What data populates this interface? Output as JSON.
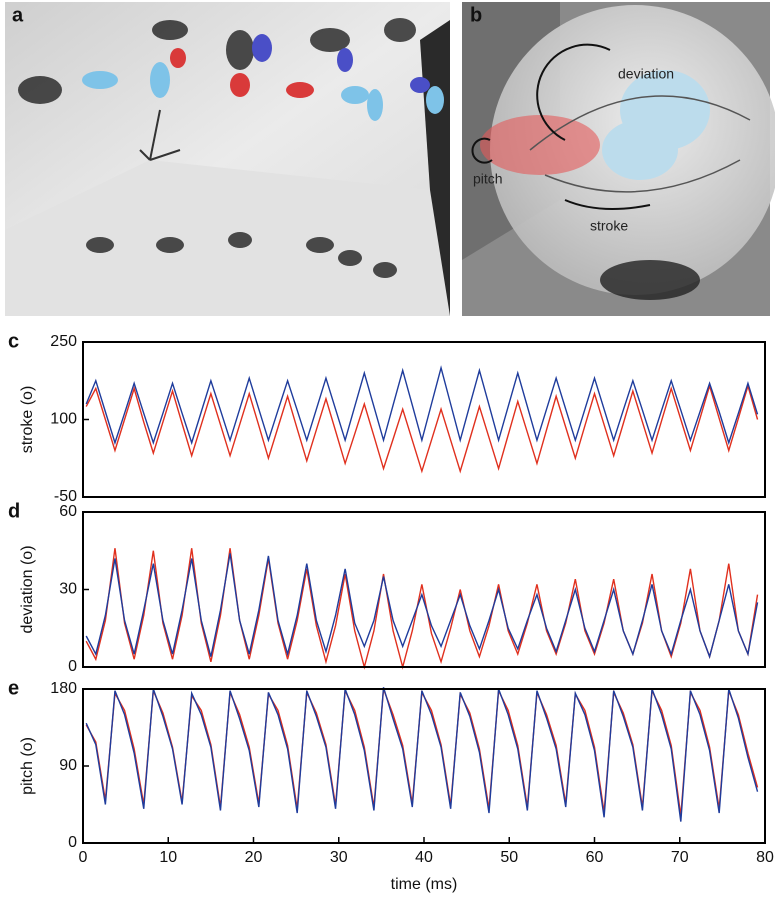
{
  "panels": {
    "a": {
      "label": "a"
    },
    "b": {
      "label": "b",
      "annotations": [
        "deviation",
        "pitch",
        "stroke"
      ]
    }
  },
  "chart_data": [
    {
      "type": "line",
      "panel_label": "c",
      "ylabel": "stroke (o)",
      "x": [
        0.375,
        1.5,
        2.625,
        3.75,
        4.875,
        6,
        7.125,
        8.25,
        9.375,
        10.5,
        11.625,
        12.75,
        13.875,
        15,
        16.125,
        17.25,
        18.375,
        19.5,
        20.625,
        21.75,
        22.875,
        24,
        25.125,
        26.25,
        27.375,
        28.5,
        29.625,
        30.75,
        31.875,
        33,
        34.125,
        35.25,
        36.375,
        37.5,
        38.625,
        39.75,
        40.875,
        42,
        43.125,
        44.25,
        45.375,
        46.5,
        47.625,
        48.75,
        49.875,
        51,
        52.125,
        53.25,
        54.375,
        55.5,
        56.625,
        57.75,
        58.875,
        60,
        61.125,
        62.25,
        63.375,
        64.5,
        65.625,
        66.75,
        67.875,
        69,
        70.125,
        71.25,
        72.375,
        73.5,
        74.625,
        75.75,
        76.875,
        78,
        79.125
      ],
      "xlim": [
        0,
        80
      ],
      "ylim": [
        -50,
        250
      ],
      "yticks": [
        -50,
        100,
        250
      ],
      "series": [
        {
          "color": "#e0301e",
          "values": [
            125,
            160,
            100,
            40,
            100,
            160,
            95,
            35,
            95,
            155,
            92,
            30,
            90,
            150,
            90,
            30,
            90,
            150,
            88,
            25,
            85,
            145,
            82,
            20,
            80,
            140,
            78,
            15,
            72,
            130,
            68,
            5,
            62,
            120,
            60,
            0,
            60,
            120,
            60,
            0,
            62,
            125,
            65,
            5,
            70,
            135,
            75,
            15,
            80,
            145,
            85,
            25,
            88,
            150,
            90,
            30,
            92,
            155,
            95,
            35,
            98,
            160,
            100,
            40,
            102,
            165,
            102,
            40,
            102,
            165,
            100
          ]
        },
        {
          "color": "#1f3c9c",
          "values": [
            130,
            175,
            115,
            55,
            112,
            170,
            112,
            55,
            112,
            170,
            112,
            55,
            115,
            175,
            118,
            60,
            120,
            180,
            120,
            60,
            118,
            175,
            118,
            60,
            120,
            180,
            120,
            60,
            125,
            190,
            125,
            60,
            128,
            195,
            128,
            60,
            130,
            200,
            130,
            60,
            128,
            195,
            128,
            60,
            125,
            190,
            125,
            60,
            120,
            180,
            120,
            60,
            120,
            180,
            120,
            60,
            118,
            175,
            118,
            60,
            118,
            175,
            118,
            60,
            115,
            170,
            115,
            55,
            112,
            170,
            110
          ]
        }
      ]
    },
    {
      "type": "line",
      "panel_label": "d",
      "ylabel": "deviation (o)",
      "x": [
        0.375,
        1.5,
        2.625,
        3.75,
        4.875,
        6,
        7.125,
        8.25,
        9.375,
        10.5,
        11.625,
        12.75,
        13.875,
        15,
        16.125,
        17.25,
        18.375,
        19.5,
        20.625,
        21.75,
        22.875,
        24,
        25.125,
        26.25,
        27.375,
        28.5,
        29.625,
        30.75,
        31.875,
        33,
        34.125,
        35.25,
        36.375,
        37.5,
        38.625,
        39.75,
        40.875,
        42,
        43.125,
        44.25,
        45.375,
        46.5,
        47.625,
        48.75,
        49.875,
        51,
        52.125,
        53.25,
        54.375,
        55.5,
        56.625,
        57.75,
        58.875,
        60,
        61.125,
        62.25,
        63.375,
        64.5,
        65.625,
        66.75,
        67.875,
        69,
        70.125,
        71.25,
        72.375,
        73.5,
        74.625,
        75.75,
        76.875,
        78,
        79.125
      ],
      "xlim": [
        0,
        80
      ],
      "ylim": [
        0,
        60
      ],
      "yticks": [
        0,
        30,
        60
      ],
      "series": [
        {
          "color": "#e0301e",
          "values": [
            10,
            3,
            18,
            46,
            17,
            3,
            20,
            45,
            17,
            3,
            20,
            46,
            17,
            2,
            20,
            46,
            18,
            3,
            20,
            42,
            17,
            3,
            18,
            38,
            16,
            2,
            16,
            36,
            14,
            0,
            14,
            36,
            14,
            0,
            14,
            32,
            13,
            2,
            15,
            30,
            14,
            4,
            16,
            32,
            14,
            5,
            17,
            32,
            14,
            5,
            17,
            34,
            14,
            5,
            17,
            34,
            14,
            5,
            17,
            36,
            14,
            4,
            17,
            38,
            14,
            4,
            18,
            40,
            14,
            5,
            28
          ]
        },
        {
          "color": "#1f3c9c",
          "values": [
            12,
            5,
            20,
            42,
            18,
            5,
            22,
            40,
            18,
            5,
            22,
            42,
            18,
            4,
            22,
            44,
            18,
            5,
            22,
            43,
            18,
            5,
            20,
            40,
            18,
            6,
            20,
            38,
            17,
            8,
            18,
            35,
            18,
            8,
            18,
            28,
            16,
            8,
            18,
            28,
            16,
            7,
            18,
            30,
            15,
            7,
            18,
            28,
            15,
            6,
            18,
            30,
            15,
            6,
            18,
            30,
            14,
            5,
            18,
            32,
            14,
            5,
            18,
            30,
            14,
            4,
            18,
            32,
            14,
            5,
            25
          ]
        }
      ]
    },
    {
      "type": "line",
      "panel_label": "e",
      "ylabel": "pitch (o)",
      "xlabel": "time (ms)",
      "x": [
        0.375,
        1.5,
        2.625,
        3.75,
        4.875,
        6,
        7.125,
        8.25,
        9.375,
        10.5,
        11.625,
        12.75,
        13.875,
        15,
        16.125,
        17.25,
        18.375,
        19.5,
        20.625,
        21.75,
        22.875,
        24,
        25.125,
        26.25,
        27.375,
        28.5,
        29.625,
        30.75,
        31.875,
        33,
        34.125,
        35.25,
        36.375,
        37.5,
        38.625,
        39.75,
        40.875,
        42,
        43.125,
        44.25,
        45.375,
        46.5,
        47.625,
        48.75,
        49.875,
        51,
        52.125,
        53.25,
        54.375,
        55.5,
        56.625,
        57.75,
        58.875,
        60,
        61.125,
        62.25,
        63.375,
        64.5,
        65.625,
        66.75,
        67.875,
        69,
        70.125,
        71.25,
        72.375,
        73.5,
        74.625,
        75.75,
        76.875,
        78,
        79.125
      ],
      "xlim": [
        0,
        80
      ],
      "xticks": [
        0,
        10,
        20,
        30,
        40,
        50,
        60,
        70,
        80
      ],
      "ylim": [
        0,
        180
      ],
      "yticks": [
        0,
        90,
        180
      ],
      "series": [
        {
          "color": "#e0301e",
          "values": [
            138,
            118,
            50,
            175,
            155,
            110,
            45,
            178,
            152,
            112,
            48,
            172,
            155,
            115,
            42,
            176,
            150,
            112,
            46,
            174,
            155,
            114,
            40,
            176,
            152,
            115,
            44,
            178,
            155,
            112,
            42,
            180,
            150,
            114,
            46,
            176,
            155,
            115,
            44,
            174,
            152,
            110,
            40,
            178,
            155,
            114,
            42,
            176,
            150,
            114,
            46,
            174,
            155,
            112,
            36,
            176,
            152,
            115,
            42,
            178,
            155,
            114,
            32,
            176,
            155,
            112,
            40,
            178,
            150,
            105,
            65
          ]
        },
        {
          "color": "#1f3c9c",
          "values": [
            140,
            115,
            45,
            178,
            150,
            105,
            40,
            180,
            148,
            110,
            45,
            175,
            150,
            112,
            38,
            178,
            145,
            108,
            42,
            176,
            150,
            110,
            35,
            178,
            148,
            112,
            40,
            180,
            150,
            108,
            38,
            182,
            145,
            110,
            42,
            178,
            150,
            112,
            40,
            176,
            148,
            106,
            35,
            180,
            150,
            110,
            38,
            178,
            146,
            110,
            42,
            175,
            150,
            108,
            30,
            178,
            148,
            112,
            38,
            180,
            150,
            110,
            25,
            178,
            150,
            108,
            35,
            180,
            146,
            100,
            60
          ]
        }
      ]
    }
  ]
}
